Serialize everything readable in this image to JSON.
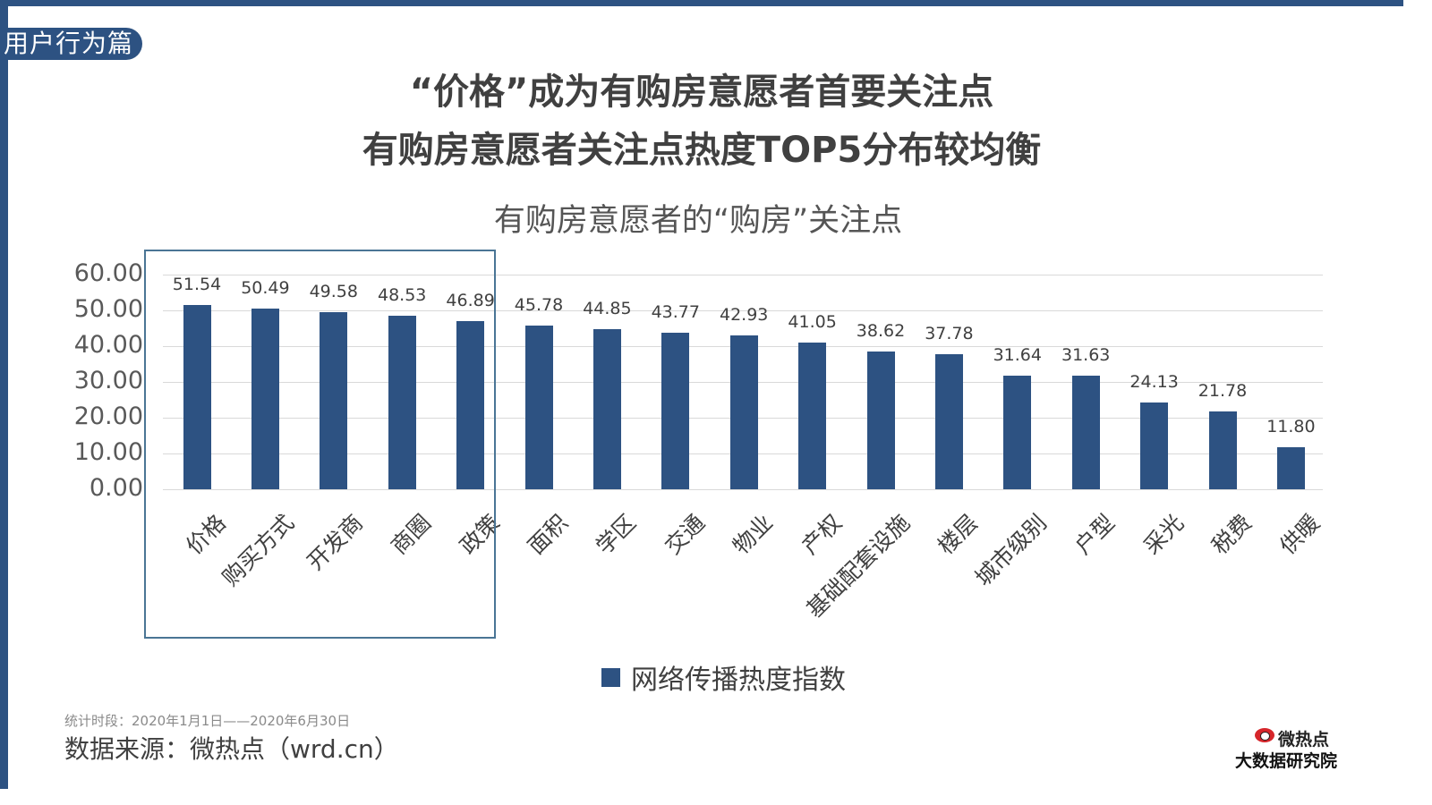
{
  "section_badge": "用户行为篇",
  "headline": {
    "line1": "“价格”成为有购房意愿者首要关注点",
    "line2": "有购房意愿者关注点热度TOP5分布较均衡"
  },
  "chart_data": {
    "type": "bar",
    "title": "有购房意愿者的“购房”关注点",
    "categories": [
      "价格",
      "购买方式",
      "开发商",
      "商圈",
      "政策",
      "面积",
      "学区",
      "交通",
      "物业",
      "产权",
      "基础配套设施",
      "楼层",
      "城市级别",
      "户型",
      "采光",
      "税费",
      "供暖"
    ],
    "values": [
      51.54,
      50.49,
      49.58,
      48.53,
      46.89,
      45.78,
      44.85,
      43.77,
      42.93,
      41.05,
      38.62,
      37.78,
      31.64,
      31.63,
      24.13,
      21.78,
      11.8
    ],
    "value_labels": [
      "51.54",
      "50.49",
      "49.58",
      "48.53",
      "46.89",
      "45.78",
      "44.85",
      "43.77",
      "42.93",
      "41.05",
      "38.62",
      "37.78",
      "31.64",
      "31.63",
      "24.13",
      "21.78",
      "11.80"
    ],
    "series": [
      {
        "name": "网络传播热度指数",
        "color": "#2d5282"
      }
    ],
    "xlabel": "",
    "ylabel": "",
    "ylim": [
      0,
      60
    ],
    "yticks": [
      "60.00",
      "50.00",
      "40.00",
      "30.00",
      "20.00",
      "10.00",
      "0.00"
    ],
    "grid": true,
    "legend_position": "bottom",
    "highlight": "TOP5 categories boxed"
  },
  "legend": {
    "label": "网络传播热度指数"
  },
  "footer": {
    "stat_period": "统计时段：2020年1月1日——2020年6月30日",
    "source": "数据来源：微热点（wrd.cn）"
  },
  "logo": {
    "top": "微热点",
    "bottom": "大数据研究院"
  },
  "colors": {
    "accent": "#2d5282",
    "highlight_box": "#4a7595",
    "grid": "#d9d9d9"
  }
}
